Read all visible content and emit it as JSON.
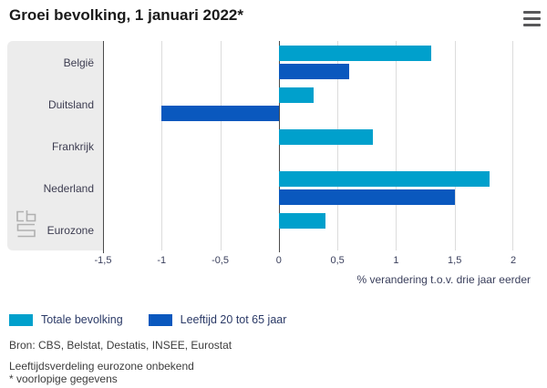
{
  "header": {
    "title": "Groei bevolking, 1 januari 2022*"
  },
  "chart_data": {
    "type": "bar",
    "orientation": "horizontal",
    "title": "Groei bevolking, 1 januari 2022*",
    "categories": [
      "België",
      "Duitsland",
      "Frankrijk",
      "Nederland",
      "Eurozone"
    ],
    "series": [
      {
        "name": "Totale bevolking",
        "color": "#00A0CC",
        "values": [
          1.3,
          0.3,
          0.8,
          1.8,
          0.4
        ]
      },
      {
        "name": "Leeftijd 20 tot 65 jaar",
        "color": "#0A58BE",
        "values": [
          0.6,
          -1.0,
          null,
          1.5,
          null
        ]
      }
    ],
    "xlabel": "% verandering t.o.v. drie jaar eerder",
    "xlim": [
      -1.5,
      2
    ],
    "xticks": [
      -1.5,
      -1,
      -0.5,
      0,
      0.5,
      1,
      1.5,
      2
    ],
    "xtick_labels": [
      "-1,5",
      "-1",
      "-0,5",
      "0",
      "0,5",
      "1",
      "1,5",
      "2"
    ],
    "grid": true,
    "legend_position": "bottom-left"
  },
  "footer": {
    "source": "Bron: CBS, Belstat, Destatis, INSEE, Eurostat",
    "footnote1": "Leeftijdsverdeling eurozone onbekend",
    "footnote2": "* voorlopige gegevens"
  },
  "branding": {
    "logo": "cbs-logo"
  },
  "colors": {
    "series_light_blue": "#00A0CC",
    "series_dark_blue": "#0A58BE",
    "panel_gray": "#ECECEC",
    "gridline": "#DCDCDC",
    "axis_line": "#4A4A4A",
    "text_dark": "#3C3C50"
  }
}
